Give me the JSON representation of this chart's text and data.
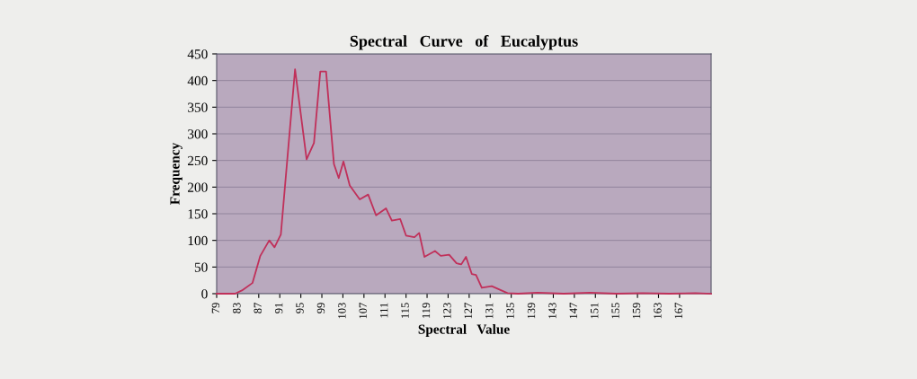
{
  "chart_data": {
    "type": "line",
    "title": "Spectral   Curve   of   Eucalyptus",
    "xlabel": "Spectral   Value",
    "ylabel": "Frequency",
    "x": [
      79,
      82.5,
      83.8,
      85.8,
      87.3,
      89,
      90,
      91.2,
      93.9,
      96.1,
      97.5,
      98.7,
      99.8,
      101.3,
      102.2,
      103.1,
      104.3,
      106.2,
      107.8,
      109.3,
      111.2,
      112.3,
      113.9,
      115,
      116.6,
      117.5,
      118.5,
      120.5,
      121.6,
      123.2,
      124.6,
      125.5,
      126.4,
      127.5,
      128.3,
      129.4,
      131.3,
      134.3,
      136.3,
      140,
      145,
      150,
      155,
      160,
      165,
      170,
      173
    ],
    "series": [
      {
        "color": "#c0305a",
        "values": [
          0,
          0,
          6,
          20,
          71,
          100,
          87,
          111,
          421,
          252,
          283,
          417,
          417,
          243,
          217,
          248,
          203,
          177,
          186,
          147,
          160,
          137,
          140,
          109,
          106,
          114,
          69,
          80,
          71,
          73,
          57,
          55,
          69,
          37,
          35,
          11,
          14,
          1,
          0,
          2,
          0,
          2,
          0,
          1,
          0,
          1,
          0
        ]
      }
    ],
    "xlim": [
      79,
      173
    ],
    "xticks": [
      79,
      83,
      87,
      91,
      95,
      99,
      103,
      107,
      111,
      115,
      119,
      123,
      127,
      131,
      135,
      139,
      143,
      147,
      151,
      155,
      159,
      163,
      167
    ],
    "ylim": [
      0,
      450
    ],
    "yticks": [
      0,
      50,
      100,
      150,
      200,
      250,
      300,
      350,
      400,
      450
    ],
    "grid": "y",
    "marker": "none",
    "line_style": "solid"
  }
}
